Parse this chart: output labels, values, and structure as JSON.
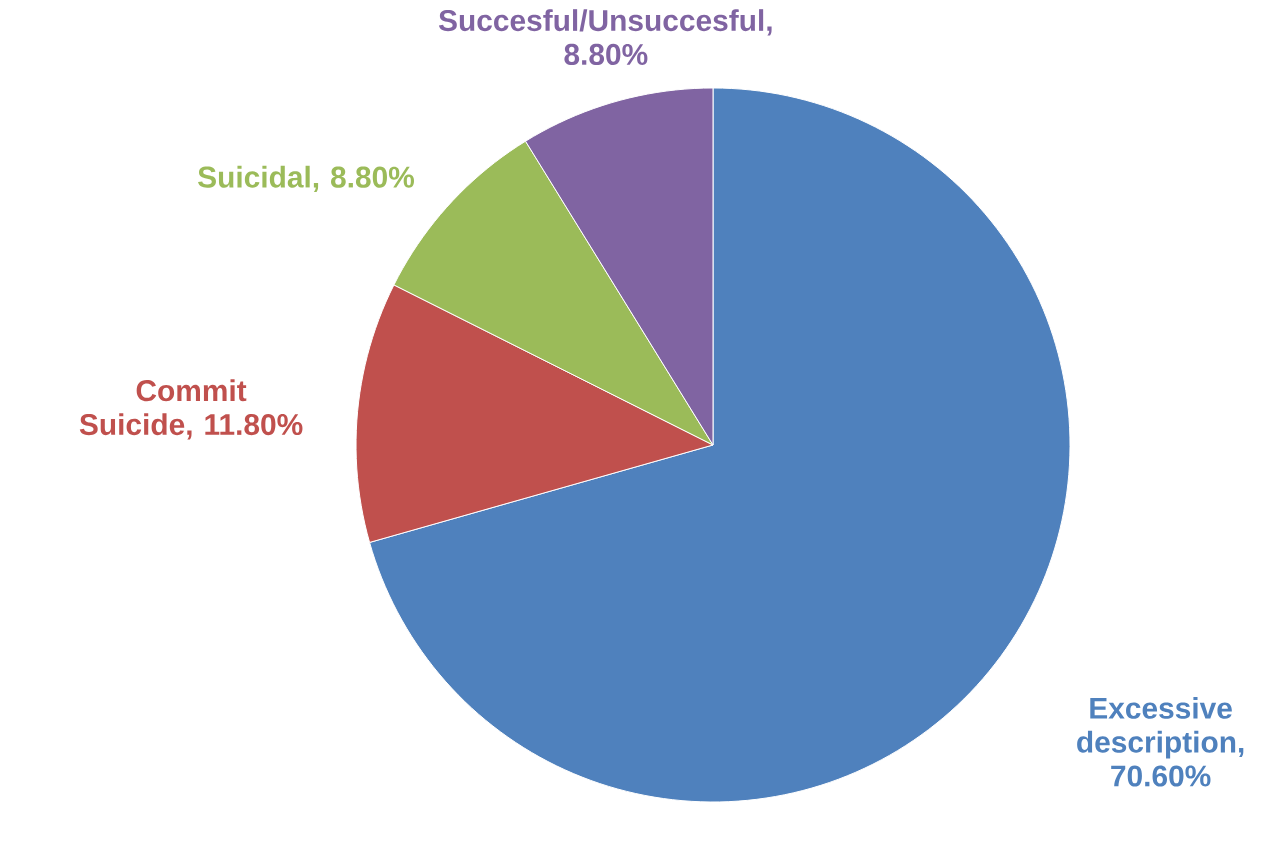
{
  "chart_data": {
    "type": "pie",
    "categories": [
      "Excessive description",
      "Commit Suicide",
      "Suicidal",
      "Succesful/Unsuccesful"
    ],
    "values": [
      70.6,
      11.8,
      8.8,
      8.8
    ],
    "value_labels": [
      ", 70.60%",
      ", 11.80%",
      ", 8.80%",
      ", 8.80%"
    ],
    "colors": [
      "#4f81bd",
      "#c0504d",
      "#9bbb59",
      "#8064a2"
    ]
  }
}
